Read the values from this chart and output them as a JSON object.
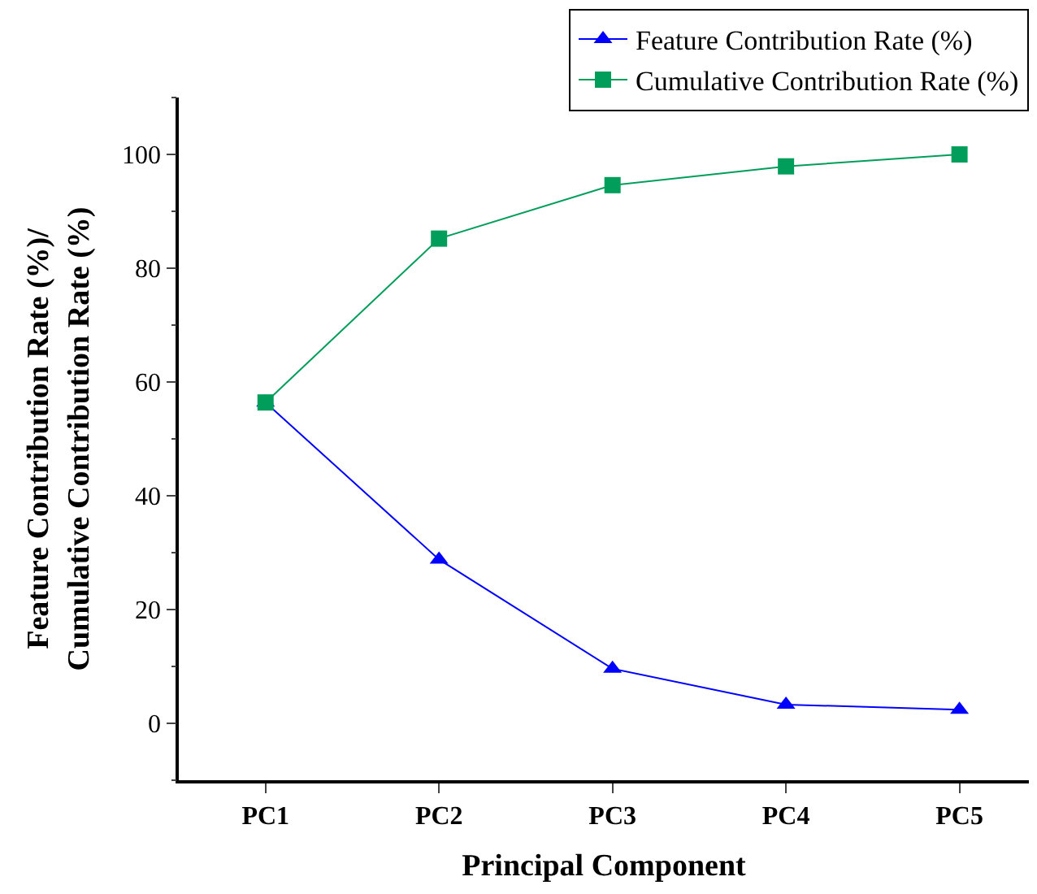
{
  "chart_data": {
    "type": "line",
    "xlabel": "Principal Component",
    "ylabel": "Feature Contribution Rate (%)/\nCumulative Contribution Rate (%)",
    "categories": [
      "PC1",
      "PC2",
      "PC3",
      "PC4",
      "PC5"
    ],
    "series": [
      {
        "name": "Feature Contribution Rate (%)",
        "color": "#0000ff",
        "marker": "triangle",
        "values": [
          56.4,
          28.8,
          9.6,
          3.3,
          2.4
        ]
      },
      {
        "name": "Cumulative Contribution Rate (%)",
        "color": "#009e5a",
        "marker": "square",
        "values": [
          56.4,
          85.2,
          94.6,
          97.9,
          100.0
        ]
      }
    ],
    "ylim": [
      -10,
      110
    ],
    "yticks": [
      0,
      20,
      40,
      60,
      80,
      100
    ],
    "legend": "top right",
    "line_style": "solid"
  }
}
